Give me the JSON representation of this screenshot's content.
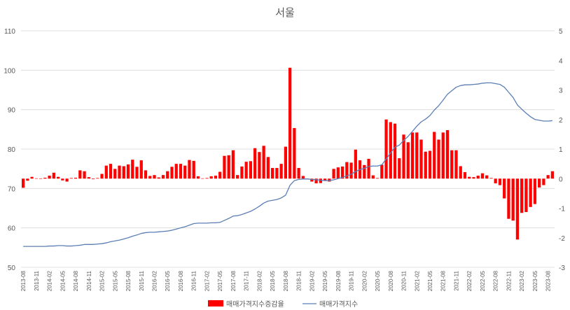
{
  "chart_data": {
    "type": "bar+line",
    "title": "서울",
    "x": [
      "2013-08",
      "2013-09",
      "2013-10",
      "2013-11",
      "2013-12",
      "2014-01",
      "2014-02",
      "2014-03",
      "2014-04",
      "2014-05",
      "2014-06",
      "2014-07",
      "2014-08",
      "2014-09",
      "2014-10",
      "2014-11",
      "2014-12",
      "2015-01",
      "2015-02",
      "2015-03",
      "2015-04",
      "2015-05",
      "2015-06",
      "2015-07",
      "2015-08",
      "2015-09",
      "2015-10",
      "2015-11",
      "2015-12",
      "2016-01",
      "2016-02",
      "2016-03",
      "2016-04",
      "2016-05",
      "2016-06",
      "2016-07",
      "2016-08",
      "2016-09",
      "2016-10",
      "2016-11",
      "2016-12",
      "2017-01",
      "2017-02",
      "2017-03",
      "2017-04",
      "2017-05",
      "2017-06",
      "2017-07",
      "2017-08",
      "2017-09",
      "2017-10",
      "2017-11",
      "2017-12",
      "2018-01",
      "2018-02",
      "2018-03",
      "2018-04",
      "2018-05",
      "2018-06",
      "2018-07",
      "2018-08",
      "2018-09",
      "2018-10",
      "2018-11",
      "2018-12",
      "2019-01",
      "2019-02",
      "2019-03",
      "2019-04",
      "2019-05",
      "2019-06",
      "2019-07",
      "2019-08",
      "2019-09",
      "2019-10",
      "2019-11",
      "2019-12",
      "2020-01",
      "2020-02",
      "2020-03",
      "2020-04",
      "2020-05",
      "2020-06",
      "2020-07",
      "2020-08",
      "2020-09",
      "2020-10",
      "2020-11",
      "2020-12",
      "2021-01",
      "2021-02",
      "2021-03",
      "2021-04",
      "2021-05",
      "2021-06",
      "2021-07",
      "2021-08",
      "2021-09",
      "2021-10",
      "2021-11",
      "2021-12",
      "2022-01",
      "2022-02",
      "2022-03",
      "2022-04",
      "2022-05",
      "2022-06",
      "2022-07",
      "2022-08",
      "2022-09",
      "2022-10",
      "2022-11",
      "2022-12",
      "2023-01",
      "2023-02",
      "2023-03",
      "2023-04",
      "2023-05",
      "2023-06",
      "2023-07",
      "2023-08",
      "2023-09"
    ],
    "x_tick_labels": [
      "2013-08",
      "2013-11",
      "2014-02",
      "2014-05",
      "2014-08",
      "2014-11",
      "2015-02",
      "2015-05",
      "2015-08",
      "2015-11",
      "2016-02",
      "2016-05",
      "2016-08",
      "2016-11",
      "2017-02",
      "2017-05",
      "2017-08",
      "2017-11",
      "2018-02",
      "2018-05",
      "2018-08",
      "2018-11",
      "2019-02",
      "2019-05",
      "2019-08",
      "2019-11",
      "2020-02",
      "2020-05",
      "2020-08",
      "2020-11",
      "2021-02",
      "2021-05",
      "2021-08",
      "2021-11",
      "2022-02",
      "2022-05",
      "2022-08",
      "2022-11",
      "2023-02",
      "2023-05",
      "2023-08"
    ],
    "series": [
      {
        "name": "매매가격지수증감율",
        "kind": "bar",
        "axis": "right",
        "color": "#ff0000",
        "values": [
          -0.31,
          -0.07,
          0.06,
          0.01,
          -0.01,
          0.03,
          0.1,
          0.2,
          0.06,
          -0.06,
          -0.1,
          0.02,
          0.03,
          0.28,
          0.25,
          0.05,
          -0.02,
          0.02,
          0.16,
          0.44,
          0.5,
          0.33,
          0.44,
          0.42,
          0.48,
          0.64,
          0.4,
          0.62,
          0.28,
          0.09,
          0.12,
          0.04,
          0.12,
          0.25,
          0.4,
          0.5,
          0.5,
          0.44,
          0.63,
          0.6,
          0.08,
          0.01,
          0.02,
          0.08,
          0.1,
          0.23,
          0.77,
          0.79,
          0.96,
          0.12,
          0.41,
          0.57,
          0.59,
          1.03,
          0.9,
          1.11,
          0.73,
          0.36,
          0.36,
          0.5,
          1.08,
          3.75,
          1.71,
          0.36,
          0.09,
          -0.03,
          -0.1,
          -0.16,
          -0.15,
          -0.07,
          -0.1,
          0.33,
          0.38,
          0.41,
          0.56,
          0.54,
          0.98,
          0.62,
          0.46,
          0.67,
          0.11,
          0.02,
          0.47,
          2.0,
          1.91,
          1.86,
          0.69,
          1.49,
          1.23,
          1.56,
          1.56,
          1.32,
          0.91,
          0.94,
          1.58,
          1.32,
          1.56,
          1.64,
          0.96,
          0.96,
          0.42,
          0.22,
          0.06,
          0.05,
          0.1,
          0.18,
          0.11,
          0.02,
          -0.16,
          -0.22,
          -0.67,
          -1.36,
          -1.42,
          -2.06,
          -1.16,
          -1.13,
          -0.96,
          -0.86,
          -0.3,
          -0.22,
          0.12,
          0.25
        ]
      },
      {
        "name": "매매가격지수",
        "kind": "line",
        "axis": "left",
        "color": "#5b7fb5",
        "values": [
          55.3,
          55.3,
          55.3,
          55.3,
          55.3,
          55.3,
          55.4,
          55.4,
          55.5,
          55.5,
          55.4,
          55.4,
          55.5,
          55.6,
          55.8,
          55.8,
          55.8,
          55.9,
          56.0,
          56.2,
          56.5,
          56.7,
          56.9,
          57.2,
          57.5,
          57.9,
          58.2,
          58.6,
          58.8,
          58.9,
          58.9,
          59.0,
          59.1,
          59.2,
          59.4,
          59.7,
          60.0,
          60.3,
          60.7,
          61.1,
          61.2,
          61.2,
          61.2,
          61.3,
          61.3,
          61.4,
          61.9,
          62.4,
          63.0,
          63.1,
          63.4,
          63.8,
          64.2,
          64.8,
          65.5,
          66.3,
          66.8,
          67.0,
          67.2,
          67.6,
          68.3,
          70.8,
          72.0,
          72.3,
          72.4,
          72.4,
          72.3,
          72.2,
          72.1,
          72.0,
          72.0,
          72.2,
          72.5,
          72.8,
          73.2,
          73.6,
          74.3,
          74.8,
          75.1,
          75.6,
          75.7,
          75.7,
          76.0,
          77.5,
          79.0,
          80.5,
          81.0,
          82.2,
          83.2,
          84.5,
          85.8,
          86.9,
          87.6,
          88.5,
          89.9,
          91.0,
          92.4,
          93.9,
          94.8,
          95.7,
          96.1,
          96.3,
          96.3,
          96.4,
          96.5,
          96.7,
          96.8,
          96.8,
          96.6,
          96.4,
          95.7,
          94.4,
          93.1,
          91.2,
          90.1,
          89.1,
          88.2,
          87.5,
          87.3,
          87.1,
          87.1,
          87.2
        ]
      }
    ],
    "y_left": {
      "min": 50,
      "max": 110,
      "ticks": [
        50,
        60,
        70,
        80,
        90,
        100,
        110
      ]
    },
    "y_right": {
      "min": -3,
      "max": 5,
      "ticks": [
        -3,
        -2,
        -1,
        0,
        1,
        2,
        3,
        4,
        5
      ]
    },
    "grid": true,
    "legend_position": "bottom"
  }
}
